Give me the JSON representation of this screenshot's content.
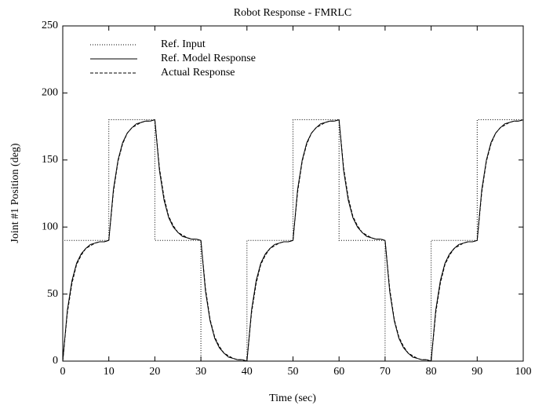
{
  "chart_data": {
    "type": "line",
    "title": "Robot Response - FMRLC",
    "x_label": "Time (sec)",
    "y_label": "Joint #1 Position (deg)",
    "xlim": [
      0,
      100
    ],
    "ylim": [
      0,
      250
    ],
    "xticks": [
      0,
      10,
      20,
      30,
      40,
      50,
      60,
      70,
      80,
      90,
      100
    ],
    "yticks": [
      0,
      50,
      100,
      150,
      200,
      250
    ],
    "grid": false,
    "legend": "upper left",
    "series": [
      {
        "name": "Ref. Input",
        "color": "#000000",
        "style": "dotted",
        "x": [
          0,
          0,
          10,
          10,
          20,
          20,
          30,
          30,
          40,
          40,
          50,
          50,
          60,
          60,
          70,
          70,
          80,
          80,
          90,
          90,
          100
        ],
        "values": [
          0,
          90,
          90,
          180,
          180,
          90,
          90,
          0,
          0,
          90,
          90,
          180,
          180,
          90,
          90,
          0,
          0,
          90,
          90,
          180,
          180
        ]
      },
      {
        "name": "Ref. Model Response",
        "color": "#000000",
        "style": "solid",
        "x": [
          0,
          1,
          2,
          3,
          4,
          5,
          6,
          7,
          8,
          9,
          10,
          11,
          12,
          13,
          14,
          15,
          16,
          17,
          18,
          19,
          20,
          21,
          22,
          23,
          24,
          25,
          26,
          27,
          28,
          29,
          30,
          31,
          32,
          33,
          34,
          35,
          36,
          37,
          38,
          39,
          40,
          41,
          42,
          43,
          44,
          45,
          46,
          47,
          48,
          49,
          50,
          51,
          52,
          53,
          54,
          55,
          56,
          57,
          58,
          59,
          60,
          61,
          62,
          63,
          64,
          65,
          66,
          67,
          68,
          69,
          70,
          71,
          72,
          73,
          74,
          75,
          76,
          77,
          78,
          79,
          80,
          81,
          82,
          83,
          84,
          85,
          86,
          87,
          88,
          89,
          90,
          91,
          92,
          93,
          94,
          95,
          96,
          97,
          98,
          99,
          100
        ],
        "values": [
          0,
          38,
          60,
          73,
          80,
          84,
          87,
          88,
          89,
          89,
          90,
          128,
          150,
          163,
          170,
          174,
          177,
          178,
          179,
          179,
          180,
          142,
          120,
          107,
          100,
          96,
          93,
          92,
          91,
          91,
          90,
          52,
          30,
          17,
          10,
          6,
          3,
          2,
          1,
          1,
          0,
          38,
          60,
          73,
          80,
          84,
          87,
          88,
          89,
          89,
          90,
          128,
          150,
          163,
          170,
          174,
          177,
          178,
          179,
          179,
          180,
          142,
          120,
          107,
          100,
          96,
          93,
          92,
          91,
          91,
          90,
          52,
          30,
          17,
          10,
          6,
          3,
          2,
          1,
          1,
          0,
          38,
          60,
          73,
          80,
          84,
          87,
          88,
          89,
          89,
          90,
          128,
          150,
          163,
          170,
          174,
          177,
          178,
          179,
          179,
          180
        ]
      },
      {
        "name": "Actual Response",
        "color": "#000000",
        "style": "dashed",
        "x": [
          0,
          1,
          2,
          3,
          4,
          5,
          6,
          7,
          8,
          9,
          10,
          11,
          12,
          13,
          14,
          15,
          16,
          17,
          18,
          19,
          20,
          21,
          22,
          23,
          24,
          25,
          26,
          27,
          28,
          29,
          30,
          31,
          32,
          33,
          34,
          35,
          36,
          37,
          38,
          39,
          40,
          41,
          42,
          43,
          44,
          45,
          46,
          47,
          48,
          49,
          50,
          51,
          52,
          53,
          54,
          55,
          56,
          57,
          58,
          59,
          60,
          61,
          62,
          63,
          64,
          65,
          66,
          67,
          68,
          69,
          70,
          71,
          72,
          73,
          74,
          75,
          76,
          77,
          78,
          79,
          80,
          81,
          82,
          83,
          84,
          85,
          86,
          87,
          88,
          89,
          90,
          91,
          92,
          93,
          94,
          95,
          96,
          97,
          98,
          99,
          100
        ],
        "values": [
          0,
          36,
          58,
          72,
          79,
          84,
          86,
          88,
          89,
          89,
          90,
          126,
          149,
          162,
          170,
          174,
          176,
          178,
          179,
          179,
          180,
          144,
          122,
          108,
          101,
          96,
          94,
          92,
          91,
          91,
          90,
          54,
          31,
          18,
          11,
          6,
          4,
          2,
          1,
          1,
          0,
          36,
          58,
          72,
          79,
          84,
          86,
          88,
          89,
          89,
          90,
          126,
          149,
          162,
          170,
          174,
          176,
          178,
          179,
          179,
          180,
          144,
          122,
          108,
          101,
          96,
          94,
          92,
          91,
          91,
          90,
          54,
          31,
          18,
          11,
          6,
          4,
          2,
          1,
          1,
          0,
          36,
          58,
          72,
          79,
          84,
          86,
          88,
          89,
          89,
          90,
          126,
          149,
          162,
          170,
          174,
          176,
          178,
          179,
          179,
          180
        ]
      }
    ]
  }
}
